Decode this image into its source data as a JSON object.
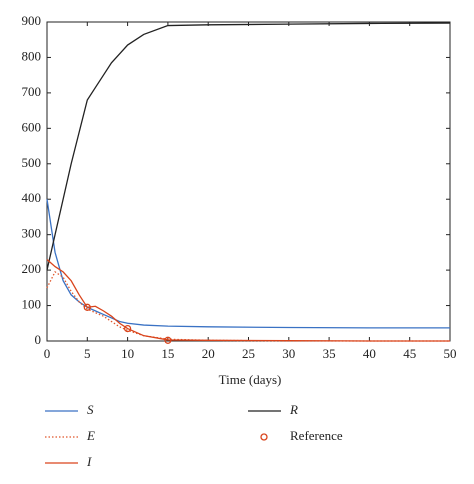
{
  "chart_data": {
    "type": "line",
    "xlabel": "Time (days)",
    "x": [
      0,
      1,
      2,
      3,
      4,
      5,
      6,
      7,
      8,
      9,
      10,
      12,
      15,
      20,
      30,
      40,
      50
    ],
    "xlim": [
      0,
      50
    ],
    "xticks": [
      0,
      5,
      10,
      15,
      20,
      25,
      30,
      35,
      40,
      45,
      50
    ],
    "ylim": [
      0,
      900
    ],
    "yticks": [
      0,
      100,
      200,
      300,
      400,
      500,
      600,
      700,
      800,
      900
    ],
    "series": [
      {
        "name": "S",
        "color": "#3a72c4",
        "dash": "solid",
        "values": [
          400,
          250,
          170,
          130,
          110,
          95,
          85,
          75,
          65,
          55,
          50,
          45,
          42,
          40,
          38,
          37,
          37
        ]
      },
      {
        "name": "R",
        "color": "#222222",
        "dash": "solid",
        "values": [
          200,
          300,
          400,
          500,
          590,
          680,
          715,
          750,
          785,
          810,
          835,
          865,
          890,
          892,
          894,
          896,
          897
        ]
      },
      {
        "name": "E",
        "color": "#e0562a",
        "dash": "dotted",
        "values": [
          150,
          195,
          180,
          140,
          110,
          90,
          80,
          70,
          55,
          40,
          30,
          15,
          5,
          2,
          0,
          0,
          0
        ]
      },
      {
        "name": "Reference",
        "type": "scatter",
        "color": "#d9441c",
        "x": [
          5,
          10,
          15
        ],
        "values": [
          95,
          35,
          2
        ]
      },
      {
        "name": "I",
        "color": "#d9441c",
        "dash": "solid",
        "values": [
          230,
          210,
          195,
          170,
          130,
          95,
          98,
          85,
          70,
          50,
          35,
          15,
          3,
          2,
          1,
          0,
          0
        ]
      }
    ]
  }
}
